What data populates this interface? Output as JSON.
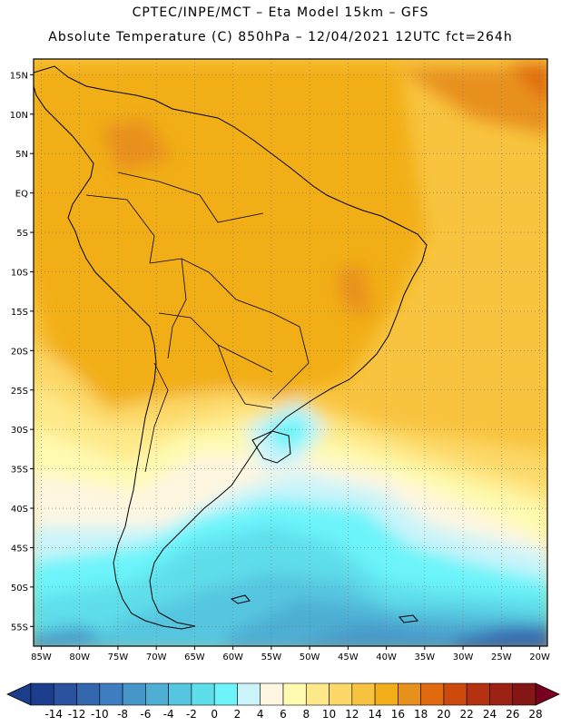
{
  "header": {
    "line1": "CPTEC/INPE/MCT –  Eta Model 15km – GFS",
    "line2": "Absolute Temperature (C) 850hPa – 12/04/2021 12UTC fct=264h"
  },
  "map": {
    "lat_labels": [
      "15N",
      "10N",
      "5N",
      "EQ",
      "5S",
      "10S",
      "15S",
      "20S",
      "25S",
      "30S",
      "35S",
      "40S",
      "45S",
      "50S",
      "55S"
    ],
    "lon_labels": [
      "85W",
      "80W",
      "75W",
      "70W",
      "65W",
      "60W",
      "55W",
      "50W",
      "45W",
      "40W",
      "35W",
      "30W",
      "25W",
      "20W"
    ],
    "lat_range": [
      17,
      -57.5
    ],
    "lon_range": [
      -86,
      -19
    ]
  },
  "colorbar": {
    "labels": [
      "-14",
      "-12",
      "-10",
      "-8",
      "-6",
      "-4",
      "-2",
      "0",
      "2",
      "4",
      "6",
      "8",
      "10",
      "12",
      "14",
      "16",
      "18",
      "20",
      "22",
      "24",
      "26",
      "28"
    ],
    "colors": [
      "#1c3c8c",
      "#2a52a0",
      "#3468ae",
      "#3e7ec0",
      "#4696c8",
      "#4eaed4",
      "#56c6e0",
      "#5edeea",
      "#6cf4fa",
      "#caf4fa",
      "#fef6e0",
      "#fefab0",
      "#fee98a",
      "#fcd868",
      "#f8c440",
      "#f2ae18",
      "#e8901c",
      "#e06a10",
      "#cc4a0e",
      "#b43212",
      "#9c2214",
      "#841614"
    ],
    "under_color": "#1c3c8c",
    "over_color": "#7a0022"
  }
}
